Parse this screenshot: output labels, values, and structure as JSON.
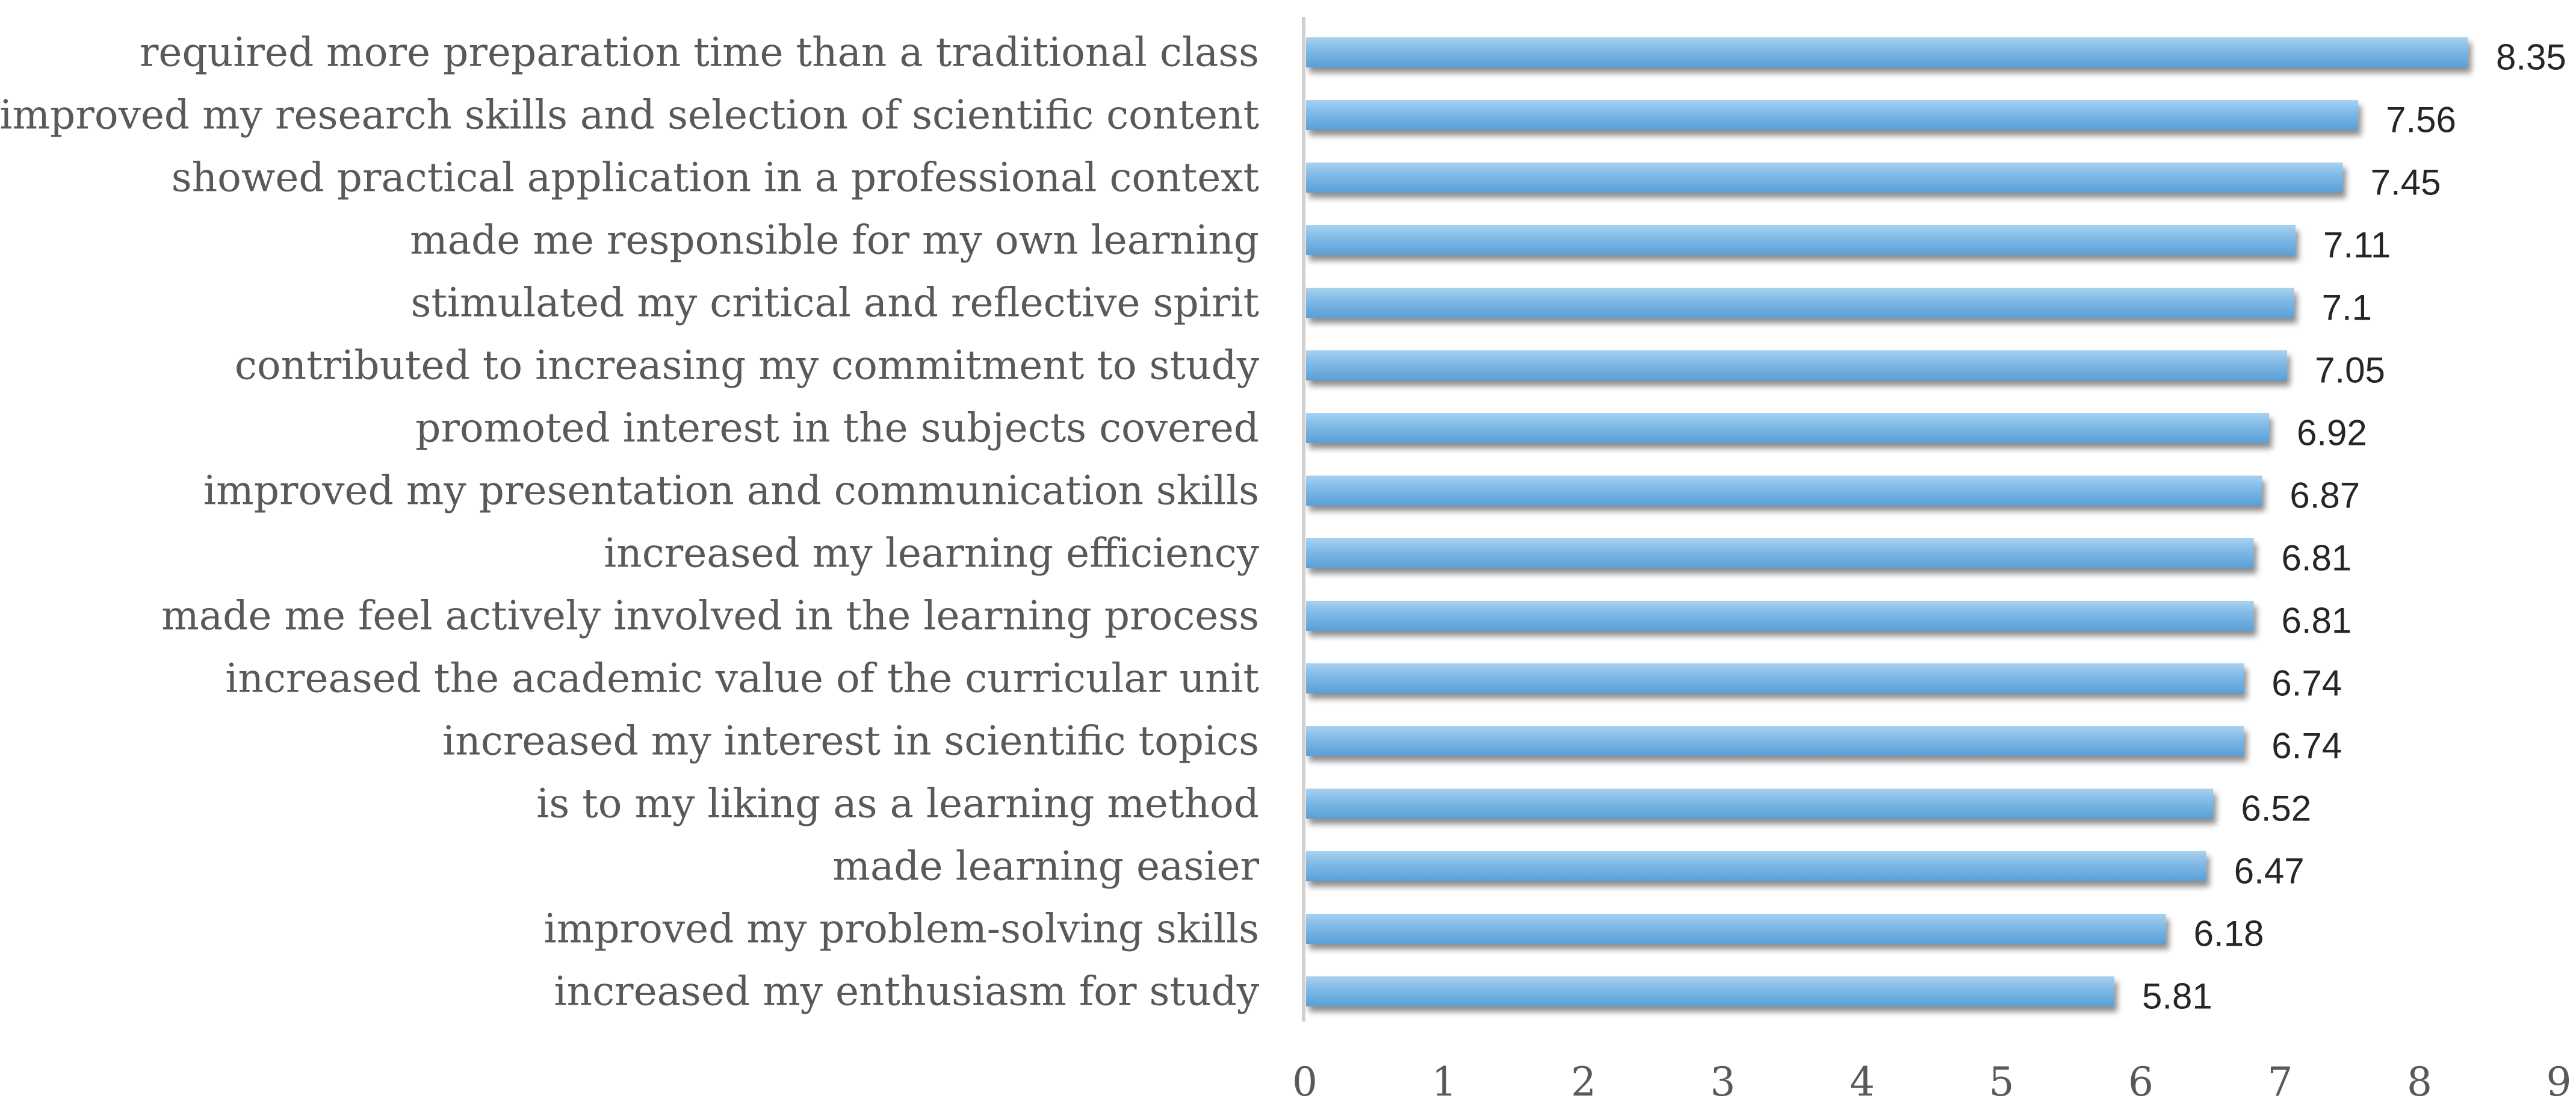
{
  "chart_data": {
    "type": "bar",
    "orientation": "horizontal",
    "title": "",
    "xlabel": "",
    "ylabel": "",
    "categories": [
      "required more preparation time than a traditional class",
      "improved my research skills and selection of scientific content",
      "showed practical application in a professional context",
      "made me responsible for my own learning",
      "stimulated my critical and reflective spirit",
      "contributed to increasing my commitment to study",
      "promoted interest in the subjects covered",
      "improved my presentation and communication skills",
      "increased my learning efficiency",
      "made me feel actively involved in the learning process",
      "increased the academic value of the curricular unit",
      "increased my interest in scientific topics",
      "is to my liking as a learning method",
      "made learning easier",
      "improved my problem-solving skills",
      "increased my enthusiasm for study"
    ],
    "values": [
      8.35,
      7.56,
      7.45,
      7.11,
      7.1,
      7.05,
      6.92,
      6.87,
      6.81,
      6.81,
      6.74,
      6.74,
      6.52,
      6.47,
      6.18,
      5.81
    ],
    "value_labels": [
      "8.35",
      "7.56",
      "7.45",
      "7.11",
      "7.1",
      "7.05",
      "6.92",
      "6.87",
      "6.81",
      "6.81",
      "6.74",
      "6.74",
      "6.52",
      "6.47",
      "6.18",
      "5.81"
    ],
    "xlim": [
      0,
      9
    ],
    "xticks": [
      "0",
      "1",
      "2",
      "3",
      "4",
      "5",
      "6",
      "7",
      "8",
      "9"
    ],
    "grid": false,
    "legend": "none",
    "colors": {
      "bar_light": "#a9d1f0",
      "bar": "#7db8e6",
      "bar_dark": "#5a9fd6",
      "bar_shadow": "#9e9e9e",
      "axis": "#d0d0d0",
      "label_text": "#595959",
      "value_text": "#262626"
    }
  }
}
